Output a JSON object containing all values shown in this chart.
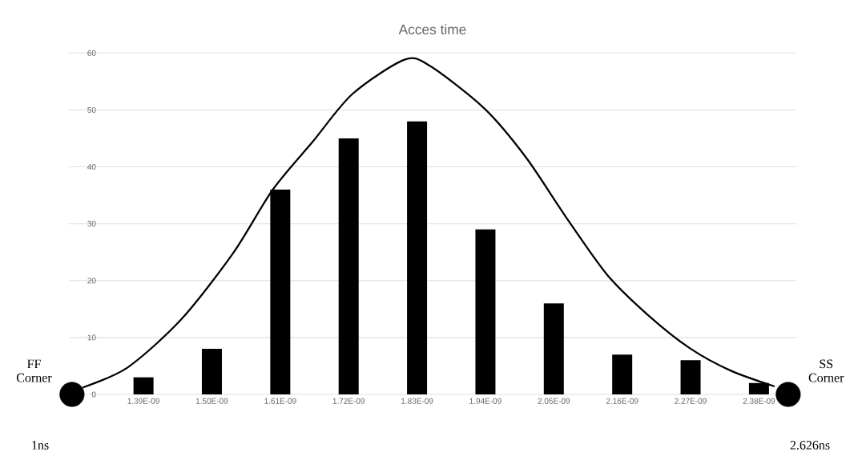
{
  "chart_data": {
    "type": "bar",
    "title": "Acces time",
    "x": [
      1.39e-09,
      1.5e-09,
      1.61e-09,
      1.72e-09,
      1.83e-09,
      1.94e-09,
      2.05e-09,
      2.16e-09,
      2.27e-09,
      2.38e-09
    ],
    "series": [
      {
        "color": "#000000",
        "values": [
          3,
          8,
          36,
          45,
          48,
          29,
          16,
          7,
          6,
          2
        ]
      },
      {
        "type": "line",
        "color": "#000000",
        "marker": "none",
        "x": [
          1.292e-09,
          1.364e-09,
          1.45e-09,
          1.534e-09,
          1.598e-09,
          1.662e-09,
          1.726e-09,
          1.809e-09,
          1.85e-09,
          1.938e-09,
          2.005e-09,
          2.07e-09,
          2.136e-09,
          2.203e-09,
          2.269e-09,
          2.334e-09,
          2.405e-09
        ],
        "values": [
          1.2,
          4.7,
          13.1,
          24.8,
          36,
          44.4,
          52.8,
          58.8,
          57.8,
          50.3,
          41.7,
          31.1,
          21.0,
          13.8,
          8.1,
          4.2,
          1.4
        ]
      },
      {
        "type": "scatter",
        "color": "#000000",
        "marker": "circle",
        "x": [
          1.275e-09,
          2.427e-09
        ],
        "values": [
          0,
          0
        ]
      }
    ],
    "xlim": [
      1.27e-09,
      2.44e-09
    ],
    "xticks": [
      {
        "value": 1.39e-09,
        "label": "1.39E-09"
      },
      {
        "value": 1.5e-09,
        "label": "1.50E-09"
      },
      {
        "value": 1.61e-09,
        "label": "1.61E-09"
      },
      {
        "value": 1.72e-09,
        "label": "1.72E-09"
      },
      {
        "value": 1.83e-09,
        "label": "1.83E-09"
      },
      {
        "value": 1.94e-09,
        "label": "1.94E-09"
      },
      {
        "value": 2.05e-09,
        "label": "2.05E-09"
      },
      {
        "value": 2.16e-09,
        "label": "2.16E-09"
      },
      {
        "value": 2.27e-09,
        "label": "2.27E-09"
      },
      {
        "value": 2.38e-09,
        "label": "2.38E-09"
      }
    ],
    "ylim": [
      0,
      60
    ],
    "yticks": [
      0,
      10,
      20,
      30,
      40,
      50,
      60
    ],
    "grid": "y",
    "annotations": [
      "FF Corner",
      "1ns",
      "SS Corner",
      "2.626ns"
    ]
  }
}
